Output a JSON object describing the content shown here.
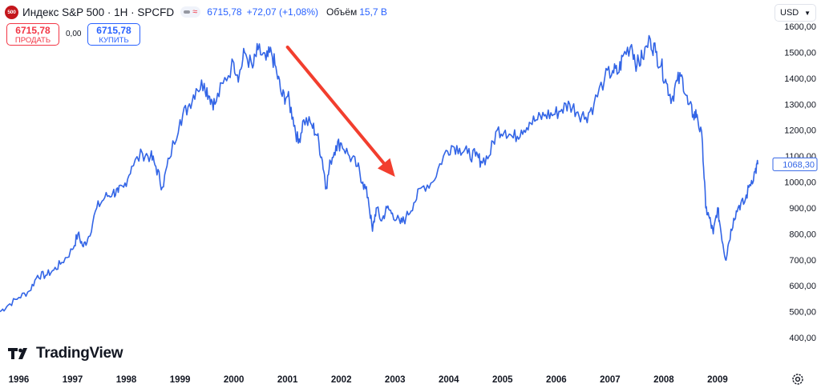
{
  "header": {
    "logo_text": "500",
    "symbol": "Индекс S&P 500 · 1H · SPCFD",
    "last_price": "6715,78",
    "change": "+72,07 (+1,08%)",
    "volume_label": "Объём",
    "volume_value": "15,7 B"
  },
  "trade": {
    "sell_price": "6715,78",
    "sell_label": "ПРОДАТЬ",
    "spread": "0,00",
    "buy_price": "6715,78",
    "buy_label": "КУПИТЬ"
  },
  "currency": {
    "label": "USD"
  },
  "brand": {
    "name": "TradingView"
  },
  "colors": {
    "line": "#3365e6",
    "arrow": "#f23e2e",
    "sell": "#f23645",
    "buy": "#2962ff"
  },
  "icons": {
    "settings": "gear-icon",
    "currency_dropdown": "chevron-down-icon"
  },
  "chart_data": {
    "type": "line",
    "title": "",
    "xlabel": "",
    "ylabel": "",
    "last_value_label": "1068,30",
    "last_value": 1068.3,
    "ylim": [
      400,
      1600
    ],
    "xlim": [
      1995.65,
      2010.0
    ],
    "y_ticks": [
      {
        "value": 1600,
        "label": "1600,00"
      },
      {
        "value": 1500,
        "label": "1500,00"
      },
      {
        "value": 1400,
        "label": "1400,00"
      },
      {
        "value": 1300,
        "label": "1300,00"
      },
      {
        "value": 1200,
        "label": "1200,00"
      },
      {
        "value": 1100,
        "label": "1100,00"
      },
      {
        "value": 1000,
        "label": "1000,00"
      },
      {
        "value": 900,
        "label": "900,00"
      },
      {
        "value": 800,
        "label": "800,00"
      },
      {
        "value": 700,
        "label": "700,00"
      },
      {
        "value": 600,
        "label": "600,00"
      },
      {
        "value": 500,
        "label": "500,00"
      },
      {
        "value": 400,
        "label": "400,00"
      }
    ],
    "x_ticks": [
      {
        "value": 1996,
        "label": "1996"
      },
      {
        "value": 1997,
        "label": "1997"
      },
      {
        "value": 1998,
        "label": "1998"
      },
      {
        "value": 1999,
        "label": "1999"
      },
      {
        "value": 2000,
        "label": "2000"
      },
      {
        "value": 2001,
        "label": "2001"
      },
      {
        "value": 2002,
        "label": "2002"
      },
      {
        "value": 2003,
        "label": "2003"
      },
      {
        "value": 2004,
        "label": "2004"
      },
      {
        "value": 2005,
        "label": "2005"
      },
      {
        "value": 2006,
        "label": "2006"
      },
      {
        "value": 2007,
        "label": "2007"
      },
      {
        "value": 2008,
        "label": "2008"
      },
      {
        "value": 2009,
        "label": "2009"
      }
    ],
    "series": [
      {
        "points": [
          [
            1995.65,
            500
          ],
          [
            1995.8,
            525
          ],
          [
            1996.0,
            555
          ],
          [
            1996.2,
            580
          ],
          [
            1996.35,
            640
          ],
          [
            1996.5,
            640
          ],
          [
            1996.65,
            660
          ],
          [
            1996.8,
            690
          ],
          [
            1997.0,
            740
          ],
          [
            1997.1,
            800
          ],
          [
            1997.2,
            750
          ],
          [
            1997.3,
            790
          ],
          [
            1997.45,
            900
          ],
          [
            1997.6,
            940
          ],
          [
            1997.75,
            960
          ],
          [
            1997.85,
            960
          ],
          [
            1997.95,
            980
          ],
          [
            1998.1,
            1060
          ],
          [
            1998.3,
            1110
          ],
          [
            1998.45,
            1100
          ],
          [
            1998.55,
            1060
          ],
          [
            1998.67,
            980
          ],
          [
            1998.8,
            1090
          ],
          [
            1999.0,
            1240
          ],
          [
            1999.15,
            1290
          ],
          [
            1999.3,
            1360
          ],
          [
            1999.45,
            1380
          ],
          [
            1999.55,
            1330
          ],
          [
            1999.65,
            1300
          ],
          [
            1999.8,
            1380
          ],
          [
            2000.0,
            1460
          ],
          [
            2000.1,
            1410
          ],
          [
            2000.2,
            1500
          ],
          [
            2000.35,
            1440
          ],
          [
            2000.45,
            1510
          ],
          [
            2000.6,
            1470
          ],
          [
            2000.7,
            1500
          ],
          [
            2000.8,
            1420
          ],
          [
            2000.9,
            1330
          ],
          [
            2001.0,
            1330
          ],
          [
            2001.1,
            1250
          ],
          [
            2001.2,
            1150
          ],
          [
            2001.3,
            1240
          ],
          [
            2001.45,
            1220
          ],
          [
            2001.55,
            1180
          ],
          [
            2001.65,
            1080
          ],
          [
            2001.72,
            980
          ],
          [
            2001.8,
            1080
          ],
          [
            2001.9,
            1140
          ],
          [
            2002.0,
            1150
          ],
          [
            2002.15,
            1100
          ],
          [
            2002.3,
            1060
          ],
          [
            2002.4,
            1000
          ],
          [
            2002.5,
            940
          ],
          [
            2002.58,
            810
          ],
          [
            2002.65,
            900
          ],
          [
            2002.75,
            850
          ],
          [
            2002.85,
            900
          ],
          [
            2002.95,
            880
          ],
          [
            2003.1,
            840
          ],
          [
            2003.2,
            860
          ],
          [
            2003.35,
            920
          ],
          [
            2003.5,
            980
          ],
          [
            2003.7,
            1000
          ],
          [
            2003.9,
            1100
          ],
          [
            2004.05,
            1140
          ],
          [
            2004.2,
            1130
          ],
          [
            2004.35,
            1110
          ],
          [
            2004.5,
            1100
          ],
          [
            2004.6,
            1080
          ],
          [
            2004.75,
            1100
          ],
          [
            2004.9,
            1200
          ],
          [
            2005.05,
            1200
          ],
          [
            2005.2,
            1170
          ],
          [
            2005.35,
            1200
          ],
          [
            2005.5,
            1230
          ],
          [
            2005.65,
            1240
          ],
          [
            2005.8,
            1260
          ],
          [
            2005.95,
            1260
          ],
          [
            2006.1,
            1280
          ],
          [
            2006.25,
            1300
          ],
          [
            2006.4,
            1270
          ],
          [
            2006.55,
            1250
          ],
          [
            2006.7,
            1300
          ],
          [
            2006.9,
            1400
          ],
          [
            2007.05,
            1430
          ],
          [
            2007.15,
            1420
          ],
          [
            2007.25,
            1490
          ],
          [
            2007.4,
            1530
          ],
          [
            2007.5,
            1450
          ],
          [
            2007.6,
            1480
          ],
          [
            2007.75,
            1550
          ],
          [
            2007.85,
            1500
          ],
          [
            2007.95,
            1450
          ],
          [
            2008.05,
            1380
          ],
          [
            2008.15,
            1320
          ],
          [
            2008.25,
            1390
          ],
          [
            2008.35,
            1400
          ],
          [
            2008.45,
            1300
          ],
          [
            2008.55,
            1260
          ],
          [
            2008.62,
            1260
          ],
          [
            2008.72,
            1150
          ],
          [
            2008.78,
            900
          ],
          [
            2008.85,
            860
          ],
          [
            2008.92,
            800
          ],
          [
            2009.0,
            900
          ],
          [
            2009.05,
            830
          ],
          [
            2009.15,
            700
          ],
          [
            2009.2,
            760
          ],
          [
            2009.3,
            860
          ],
          [
            2009.4,
            910
          ],
          [
            2009.5,
            920
          ],
          [
            2009.6,
            990
          ],
          [
            2009.7,
            1040
          ],
          [
            2009.75,
            1068.3
          ]
        ]
      }
    ],
    "annotation": {
      "type": "arrow",
      "from": [
        2001.0,
        1520
      ],
      "to": [
        2003.0,
        1020
      ]
    },
    "grid": false,
    "legend": "none"
  }
}
